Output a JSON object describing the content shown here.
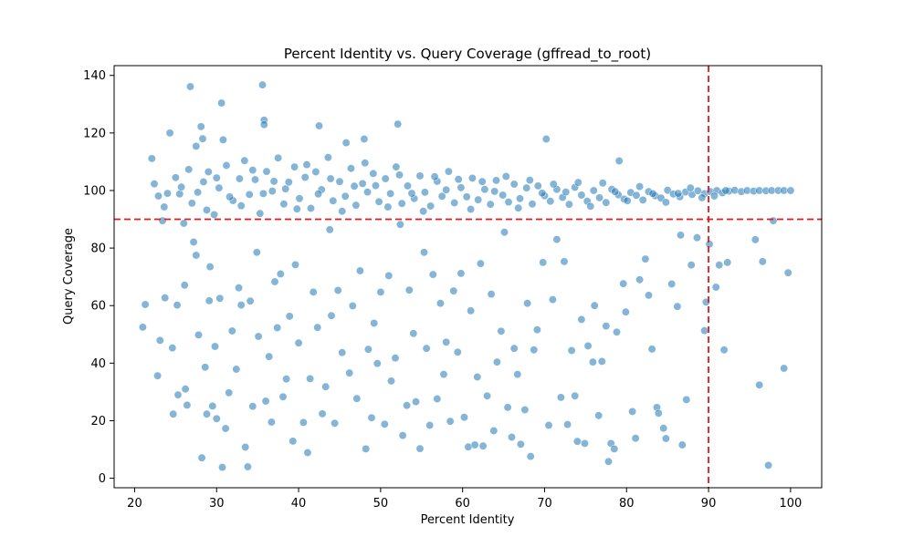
{
  "chart_data": {
    "type": "scatter",
    "title": "Percent Identity vs. Query Coverage (gffread_to_root)",
    "xlabel": "Percent Identity",
    "ylabel": "Query Coverage",
    "xlim": [
      17.5,
      103.8
    ],
    "ylim": [
      -3.3,
      143.4
    ],
    "xticks": [
      20,
      30,
      40,
      50,
      60,
      70,
      80,
      90,
      100
    ],
    "yticks": [
      0,
      20,
      40,
      60,
      80,
      100,
      120,
      140
    ],
    "grid": false,
    "legend": "none",
    "marker_color": "#1f77b4",
    "marker_opacity": 0.55,
    "reference_lines": [
      {
        "orientation": "vertical",
        "value": 90,
        "color": "#e41a1c",
        "style": "dashed"
      },
      {
        "orientation": "horizontal",
        "value": 90,
        "color": "#e41a1c",
        "style": "dashed"
      }
    ],
    "points": [
      [
        21.0,
        52.5
      ],
      [
        21.3,
        60.4
      ],
      [
        22.1,
        111.1
      ],
      [
        22.8,
        35.6
      ],
      [
        23.1,
        47.9
      ],
      [
        23.4,
        89.5
      ],
      [
        23.7,
        62.7
      ],
      [
        24.3,
        120.0
      ],
      [
        24.6,
        45.3
      ],
      [
        24.7,
        22.3
      ],
      [
        25.2,
        60.2
      ],
      [
        25.3,
        29.0
      ],
      [
        25.5,
        98.8
      ],
      [
        26.1,
        67.1
      ],
      [
        26.2,
        31.0
      ],
      [
        26.4,
        25.4
      ],
      [
        26.8,
        136.1
      ],
      [
        27.2,
        82.1
      ],
      [
        27.5,
        77.5
      ],
      [
        27.5,
        115.4
      ],
      [
        27.8,
        49.8
      ],
      [
        28.1,
        122.2
      ],
      [
        28.2,
        7.1
      ],
      [
        28.3,
        118.0
      ],
      [
        28.6,
        38.6
      ],
      [
        28.8,
        22.3
      ],
      [
        29.1,
        61.7
      ],
      [
        29.2,
        73.5
      ],
      [
        29.5,
        25.1
      ],
      [
        29.8,
        45.8
      ],
      [
        30.0,
        20.7
      ],
      [
        30.4,
        62.5
      ],
      [
        30.6,
        130.4
      ],
      [
        30.7,
        3.8
      ],
      [
        30.8,
        117.6
      ],
      [
        31.1,
        17.3
      ],
      [
        31.5,
        29.7
      ],
      [
        31.9,
        51.2
      ],
      [
        32.4,
        37.9
      ],
      [
        32.7,
        66.2
      ],
      [
        33.0,
        60.2
      ],
      [
        33.5,
        10.8
      ],
      [
        33.8,
        4.0
      ],
      [
        34.1,
        61.6
      ],
      [
        34.4,
        25.0
      ],
      [
        34.9,
        78.5
      ],
      [
        35.1,
        49.3
      ],
      [
        35.6,
        136.7
      ],
      [
        35.8,
        124.5
      ],
      [
        35.8,
        122.9
      ],
      [
        36.0,
        26.8
      ],
      [
        36.4,
        42.3
      ],
      [
        36.7,
        19.5
      ],
      [
        37.1,
        68.3
      ],
      [
        37.4,
        52.3
      ],
      [
        37.8,
        71.0
      ],
      [
        38.1,
        28.3
      ],
      [
        38.5,
        34.5
      ],
      [
        38.9,
        56.3
      ],
      [
        39.3,
        12.9
      ],
      [
        39.6,
        74.2
      ],
      [
        40.0,
        47.0
      ],
      [
        40.6,
        19.4
      ],
      [
        41.1,
        8.9
      ],
      [
        41.4,
        34.6
      ],
      [
        41.8,
        64.7
      ],
      [
        42.3,
        52.4
      ],
      [
        42.5,
        122.5
      ],
      [
        42.9,
        22.4
      ],
      [
        43.3,
        31.8
      ],
      [
        43.8,
        86.4
      ],
      [
        44.0,
        56.5
      ],
      [
        44.4,
        19.1
      ],
      [
        44.8,
        65.3
      ],
      [
        45.3,
        43.7
      ],
      [
        45.8,
        116.6
      ],
      [
        46.2,
        36.6
      ],
      [
        46.6,
        59.9
      ],
      [
        47.1,
        27.7
      ],
      [
        47.5,
        72.1
      ],
      [
        48.0,
        117.9
      ],
      [
        48.2,
        10.2
      ],
      [
        48.5,
        44.8
      ],
      [
        48.9,
        21.0
      ],
      [
        49.2,
        53.9
      ],
      [
        49.6,
        39.9
      ],
      [
        50.0,
        64.7
      ],
      [
        50.5,
        18.8
      ],
      [
        51.0,
        70.4
      ],
      [
        51.3,
        33.8
      ],
      [
        51.8,
        41.8
      ],
      [
        52.1,
        123.1
      ],
      [
        52.4,
        88.2
      ],
      [
        52.7,
        14.9
      ],
      [
        53.2,
        25.3
      ],
      [
        53.5,
        65.4
      ],
      [
        54.0,
        50.3
      ],
      [
        54.3,
        26.6
      ],
      [
        54.8,
        10.3
      ],
      [
        55.3,
        78.5
      ],
      [
        55.6,
        45.1
      ],
      [
        56.0,
        18.4
      ],
      [
        56.4,
        70.8
      ],
      [
        56.9,
        27.6
      ],
      [
        57.3,
        60.8
      ],
      [
        57.7,
        36.1
      ],
      [
        58.0,
        47.3
      ],
      [
        58.5,
        19.8
      ],
      [
        58.9,
        65.1
      ],
      [
        59.4,
        43.8
      ],
      [
        59.8,
        71.2
      ],
      [
        60.2,
        21.2
      ],
      [
        60.7,
        10.9
      ],
      [
        61.0,
        58.2
      ],
      [
        61.5,
        11.6
      ],
      [
        61.8,
        35.2
      ],
      [
        62.2,
        74.6
      ],
      [
        62.5,
        11.2
      ],
      [
        63.0,
        28.6
      ],
      [
        63.5,
        64.0
      ],
      [
        63.8,
        16.5
      ],
      [
        64.2,
        40.4
      ],
      [
        64.7,
        51.1
      ],
      [
        65.1,
        85.5
      ],
      [
        65.5,
        24.6
      ],
      [
        66.0,
        14.3
      ],
      [
        66.3,
        45.1
      ],
      [
        66.7,
        36.1
      ],
      [
        67.1,
        11.8
      ],
      [
        67.6,
        23.8
      ],
      [
        67.9,
        60.8
      ],
      [
        68.3,
        7.6
      ],
      [
        68.7,
        44.6
      ],
      [
        69.1,
        51.6
      ],
      [
        69.8,
        75.0
      ],
      [
        70.2,
        117.9
      ],
      [
        70.5,
        18.4
      ],
      [
        71.0,
        62.1
      ],
      [
        71.5,
        83.0
      ],
      [
        72.0,
        28.1
      ],
      [
        72.4,
        75.3
      ],
      [
        72.8,
        18.7
      ],
      [
        73.3,
        44.4
      ],
      [
        73.7,
        28.6
      ],
      [
        74.0,
        12.8
      ],
      [
        74.5,
        55.2
      ],
      [
        74.9,
        12.1
      ],
      [
        75.3,
        46.0
      ],
      [
        75.9,
        40.4
      ],
      [
        76.1,
        60.0
      ],
      [
        76.6,
        21.8
      ],
      [
        77.0,
        40.6
      ],
      [
        77.5,
        52.9
      ],
      [
        77.8,
        5.8
      ],
      [
        78.1,
        12.1
      ],
      [
        78.5,
        10.2
      ],
      [
        78.8,
        50.8
      ],
      [
        79.1,
        110.3
      ],
      [
        79.6,
        67.6
      ],
      [
        79.9,
        57.8
      ],
      [
        80.7,
        23.2
      ],
      [
        81.1,
        13.9
      ],
      [
        81.6,
        69.0
      ],
      [
        82.3,
        76.2
      ],
      [
        82.7,
        63.6
      ],
      [
        83.1,
        44.9
      ],
      [
        83.7,
        24.6
      ],
      [
        83.9,
        22.6
      ],
      [
        84.5,
        17.4
      ],
      [
        84.8,
        13.8
      ],
      [
        85.5,
        67.5
      ],
      [
        86.2,
        59.7
      ],
      [
        86.6,
        84.5
      ],
      [
        86.8,
        11.6
      ],
      [
        87.3,
        27.3
      ],
      [
        87.9,
        74.1
      ],
      [
        88.6,
        83.6
      ],
      [
        89.5,
        51.3
      ],
      [
        89.7,
        61.2
      ],
      [
        90.1,
        81.4
      ],
      [
        90.9,
        66.4
      ],
      [
        91.3,
        74.1
      ],
      [
        91.9,
        44.6
      ],
      [
        92.3,
        75.0
      ],
      [
        95.7,
        82.9
      ],
      [
        96.2,
        32.4
      ],
      [
        96.6,
        75.3
      ],
      [
        97.3,
        4.5
      ],
      [
        97.9,
        89.5
      ],
      [
        99.2,
        38.2
      ],
      [
        99.7,
        71.4
      ],
      [
        22.4,
        102.3
      ],
      [
        24.0,
        99.0
      ],
      [
        25.0,
        104.5
      ],
      [
        26.0,
        88.6
      ],
      [
        27.0,
        95.6
      ],
      [
        28.4,
        103.0
      ],
      [
        29.0,
        106.5
      ],
      [
        29.7,
        91.6
      ],
      [
        30.3,
        100.9
      ],
      [
        31.2,
        108.7
      ],
      [
        32.0,
        96.5
      ],
      [
        32.8,
        104.1
      ],
      [
        33.4,
        110.4
      ],
      [
        34.0,
        98.6
      ],
      [
        34.7,
        103.8
      ],
      [
        35.3,
        92.0
      ],
      [
        36.1,
        106.6
      ],
      [
        36.8,
        99.8
      ],
      [
        37.5,
        111.3
      ],
      [
        38.2,
        95.3
      ],
      [
        38.8,
        102.9
      ],
      [
        39.5,
        108.2
      ],
      [
        40.1,
        97.2
      ],
      [
        40.8,
        104.6
      ],
      [
        41.5,
        93.8
      ],
      [
        42.1,
        106.5
      ],
      [
        42.8,
        100.3
      ],
      [
        43.6,
        111.5
      ],
      [
        44.2,
        96.4
      ],
      [
        45.0,
        103.1
      ],
      [
        45.7,
        98.0
      ],
      [
        46.4,
        107.7
      ],
      [
        47.0,
        94.9
      ],
      [
        47.8,
        102.4
      ],
      [
        48.4,
        99.5
      ],
      [
        49.1,
        105.9
      ],
      [
        49.8,
        96.1
      ],
      [
        50.6,
        104.1
      ],
      [
        51.2,
        98.9
      ],
      [
        51.9,
        108.2
      ],
      [
        52.6,
        95.5
      ],
      [
        53.3,
        101.6
      ],
      [
        54.1,
        97.2
      ],
      [
        54.8,
        105.1
      ],
      [
        55.4,
        99.4
      ],
      [
        56.1,
        94.6
      ],
      [
        56.9,
        103.2
      ],
      [
        57.5,
        98.0
      ],
      [
        58.3,
        106.6
      ],
      [
        59.0,
        95.7
      ],
      [
        59.8,
        101.0
      ],
      [
        60.5,
        97.8
      ],
      [
        61.2,
        104.3
      ],
      [
        61.9,
        96.8
      ],
      [
        62.7,
        100.4
      ],
      [
        63.4,
        95.2
      ],
      [
        64.1,
        103.5
      ],
      [
        64.9,
        98.4
      ],
      [
        65.6,
        96.0
      ],
      [
        66.3,
        102.2
      ],
      [
        67.0,
        97.2
      ],
      [
        67.8,
        100.9
      ],
      [
        68.5,
        95.3
      ],
      [
        69.2,
        101.6
      ],
      [
        70.0,
        98.2
      ],
      [
        70.7,
        96.3
      ],
      [
        71.5,
        100.4
      ],
      [
        72.2,
        97.6
      ],
      [
        73.0,
        95.2
      ],
      [
        73.7,
        101.1
      ],
      [
        74.5,
        98.4
      ],
      [
        75.2,
        96.3
      ],
      [
        76.0,
        100.0
      ],
      [
        76.7,
        97.5
      ],
      [
        77.5,
        95.8
      ],
      [
        78.2,
        100.4
      ],
      [
        79.0,
        98.5
      ],
      [
        79.7,
        97.0
      ],
      [
        80.5,
        99.3
      ],
      [
        81.2,
        98.3
      ],
      [
        82.0,
        96.7
      ],
      [
        82.7,
        99.6
      ],
      [
        83.5,
        98.2
      ],
      [
        84.2,
        97.4
      ],
      [
        85.0,
        100.1
      ],
      [
        85.7,
        98.8
      ],
      [
        86.5,
        97.8
      ],
      [
        87.2,
        99.5
      ],
      [
        88.0,
        98.6
      ],
      [
        88.7,
        99.9
      ],
      [
        89.5,
        98.9
      ],
      [
        90.2,
        99.6
      ],
      [
        91.0,
        100.0
      ],
      [
        91.7,
        99.2
      ],
      [
        92.5,
        99.8
      ],
      [
        93.2,
        100.1
      ],
      [
        94.0,
        99.6
      ],
      [
        94.7,
        100.0
      ],
      [
        95.5,
        99.8
      ],
      [
        96.2,
        100.0
      ],
      [
        97.0,
        99.9
      ],
      [
        97.7,
        100.0
      ],
      [
        98.5,
        100.0
      ],
      [
        99.2,
        100.0
      ],
      [
        100.0,
        100.0
      ],
      [
        22.9,
        98.1
      ],
      [
        23.6,
        94.3
      ],
      [
        25.7,
        101.2
      ],
      [
        26.6,
        107.3
      ],
      [
        27.7,
        99.4
      ],
      [
        28.8,
        93.2
      ],
      [
        30.0,
        104.4
      ],
      [
        31.6,
        97.8
      ],
      [
        33.0,
        94.7
      ],
      [
        34.4,
        107.1
      ],
      [
        35.7,
        98.9
      ],
      [
        37.0,
        103.2
      ],
      [
        38.4,
        100.6
      ],
      [
        39.8,
        93.6
      ],
      [
        41.0,
        109.0
      ],
      [
        42.4,
        98.8
      ],
      [
        43.9,
        104.1
      ],
      [
        45.3,
        92.8
      ],
      [
        46.8,
        101.5
      ],
      [
        48.1,
        109.6
      ],
      [
        49.4,
        101.7
      ],
      [
        50.9,
        94.3
      ],
      [
        52.3,
        105.4
      ],
      [
        53.8,
        99.0
      ],
      [
        55.2,
        92.8
      ],
      [
        56.6,
        104.8
      ],
      [
        58.0,
        100.2
      ],
      [
        59.5,
        103.9
      ],
      [
        61.0,
        93.5
      ],
      [
        62.4,
        103.1
      ],
      [
        63.9,
        99.7
      ],
      [
        65.3,
        104.9
      ],
      [
        66.8,
        93.9
      ],
      [
        68.2,
        103.6
      ],
      [
        69.7,
        99.1
      ],
      [
        71.1,
        102.2
      ],
      [
        72.6,
        99.5
      ],
      [
        74.1,
        102.8
      ],
      [
        75.6,
        94.5
      ],
      [
        77.1,
        102.6
      ],
      [
        78.6,
        99.6
      ],
      [
        80.1,
        96.4
      ],
      [
        81.6,
        101.4
      ],
      [
        83.2,
        98.9
      ],
      [
        84.8,
        95.9
      ],
      [
        86.3,
        99.0
      ],
      [
        87.8,
        100.9
      ],
      [
        89.2,
        97.5
      ],
      [
        90.7,
        98.1
      ],
      [
        92.1,
        100.0
      ]
    ]
  }
}
